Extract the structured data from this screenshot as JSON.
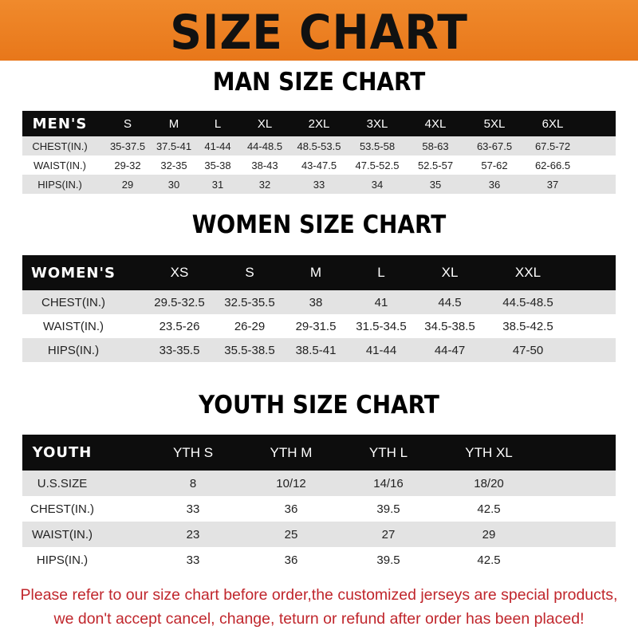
{
  "banner": {
    "title": "SIZE CHART",
    "color": "#e8771a"
  },
  "men": {
    "title": "MAN SIZE CHART",
    "header": [
      "MEN'S",
      "S",
      "M",
      "L",
      "XL",
      "2XL",
      "3XL",
      "4XL",
      "5XL",
      "6XL"
    ],
    "rows": [
      [
        "CHEST(IN.)",
        "35-37.5",
        "37.5-41",
        "41-44",
        "44-48.5",
        "48.5-53.5",
        "53.5-58",
        "58-63",
        "63-67.5",
        "67.5-72"
      ],
      [
        "WAIST(IN.)",
        "29-32",
        "32-35",
        "35-38",
        "38-43",
        "43-47.5",
        "47.5-52.5",
        "52.5-57",
        "57-62",
        "62-66.5"
      ],
      [
        "HIPS(IN.)",
        "29",
        "30",
        "31",
        "32",
        "33",
        "34",
        "35",
        "36",
        "37"
      ]
    ]
  },
  "women": {
    "title": "WOMEN SIZE CHART",
    "header": [
      "WOMEN'S",
      "XS",
      "S",
      "M",
      "L",
      "XL",
      "XXL"
    ],
    "rows": [
      [
        "CHEST(IN.)",
        "29.5-32.5",
        "32.5-35.5",
        "38",
        "41",
        "44.5",
        "44.5-48.5"
      ],
      [
        "WAIST(IN.)",
        "23.5-26",
        "26-29",
        "29-31.5",
        "31.5-34.5",
        "34.5-38.5",
        "38.5-42.5"
      ],
      [
        "HIPS(IN.)",
        "33-35.5",
        "35.5-38.5",
        "38.5-41",
        "41-44",
        "44-47",
        "47-50"
      ]
    ]
  },
  "youth": {
    "title": "YOUTH SIZE CHART",
    "header": [
      "YOUTH",
      "YTH S",
      "YTH M",
      "YTH L",
      "YTH XL"
    ],
    "rows": [
      [
        "U.S.SIZE",
        "8",
        "10/12",
        "14/16",
        "18/20"
      ],
      [
        "CHEST(IN.)",
        "33",
        "36",
        "39.5",
        "42.5"
      ],
      [
        "WAIST(IN.)",
        "23",
        "25",
        "27",
        "29"
      ],
      [
        "HIPS(IN.)",
        "33",
        "36",
        "39.5",
        "42.5"
      ]
    ]
  },
  "notice": {
    "line1": "Please refer to our size chart before order,the customized jerseys are special products,",
    "line2": "we don't accept cancel, change, teturn or refund after order has been placed!",
    "color": "#c0262c"
  }
}
